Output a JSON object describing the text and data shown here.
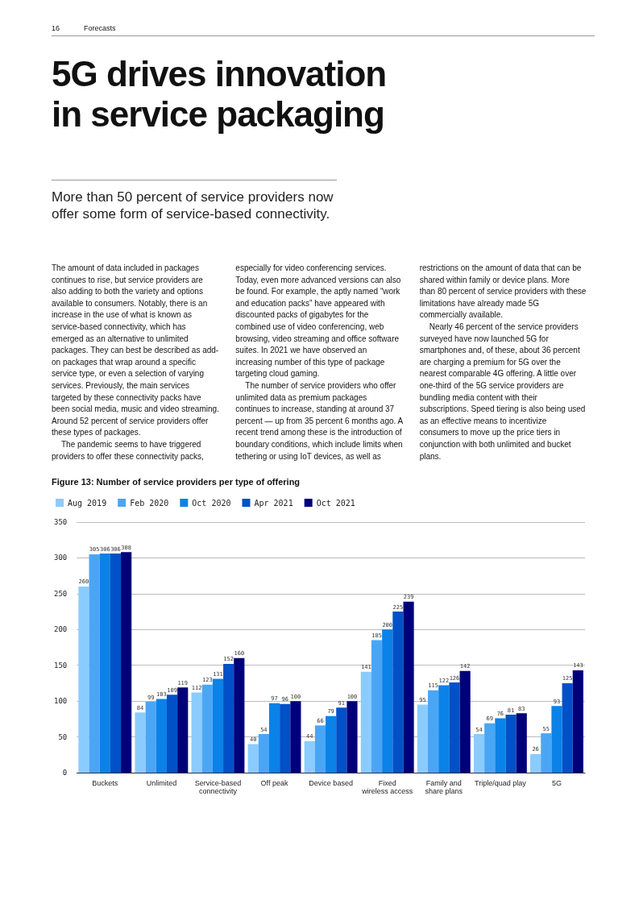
{
  "chart_data": {
    "type": "bar",
    "title": "Figure 13: Number of service providers per type of offering",
    "annotations": [
      "16",
      "Forecasts",
      "5G drives innovation in service packaging",
      "More than 50 percent of service providers now offer some form of service-based connectivity.",
      "The amount of data included in packages continues to rise, but service providers are also adding to both the variety and options available to consumers. Notably, there is an increase in the use of what is known as service-based connectivity, which has emerged as an alternative to unlimited packages. They can best be described as add-on packages that wrap around a specific service type, or even a selection of varying services. Previously, the main services targeted by these connectivity packs have been social media, music and video streaming. Around 52 percent of service providers offer these types of packages.",
      "The pandemic seems to have triggered providers to offer these connectivity packs, especially for video conferencing services.",
      "Today, even more advanced versions can also be found. For example, the aptly named “work and education packs” have appeared with discounted packs of gigabytes for the combined use of video conferencing, web browsing, video streaming and office software suites. In 2021 we have observed an increasing number of this type of package targeting cloud gaming.",
      "The number of service providers who offer unlimited data as premium packages continues to increase, standing at around 37 percent — up from 35 percent 6 months ago. A recent trend among these is the introduction of boundary conditions, which include limits when tethering or using IoT devices, as well as restrictions on the amount of data that can be shared within family or device plans. More than 80 percent of service providers with these limitations have already made 5G commercially available.",
      "Nearly 46 percent of the service providers surveyed have now launched 5G for smartphones and, of these, about 36 percent are charging a premium for 5G over the nearest comparable 4G offering. A little over one-third of the 5G service providers are bundling media content with their subscriptions. Speed tiering is also being used as an effective means to incentivize consumers to move up the price tiers in conjunction with both unlimited and bucket plans."
    ],
    "categories": [
      "Buckets",
      "Unlimited",
      "Service-based\nconnectivity",
      "Off peak",
      "Device based",
      "Fixed\nwireless access",
      "Family and\nshare plans",
      "Triple/quad play",
      "5G"
    ],
    "series": [
      {
        "name": "Aug 2019",
        "color": "#8accff",
        "values": [
          260,
          84,
          112,
          40,
          44,
          141,
          95,
          54,
          26
        ]
      },
      {
        "name": "Feb 2020",
        "color": "#4aa6f5",
        "values": [
          305,
          99,
          123,
          54,
          66,
          185,
          115,
          69,
          55
        ]
      },
      {
        "name": "Oct 2020",
        "color": "#0a82e8",
        "values": [
          306,
          103,
          131,
          97,
          79,
          200,
          122,
          76,
          93
        ]
      },
      {
        "name": "Apr 2021",
        "color": "#0050c8",
        "values": [
          306,
          109,
          152,
          96,
          91,
          225,
          126,
          81,
          125
        ]
      },
      {
        "name": "Oct 2021",
        "color": "#00007a",
        "values": [
          308,
          119,
          160,
          100,
          100,
          239,
          142,
          83,
          143
        ]
      }
    ],
    "ylim": [
      0,
      350
    ],
    "yticks": [
      0,
      50,
      100,
      150,
      200,
      250,
      300,
      350
    ],
    "grid": "y",
    "legend": "top left",
    "data_labels": true
  }
}
